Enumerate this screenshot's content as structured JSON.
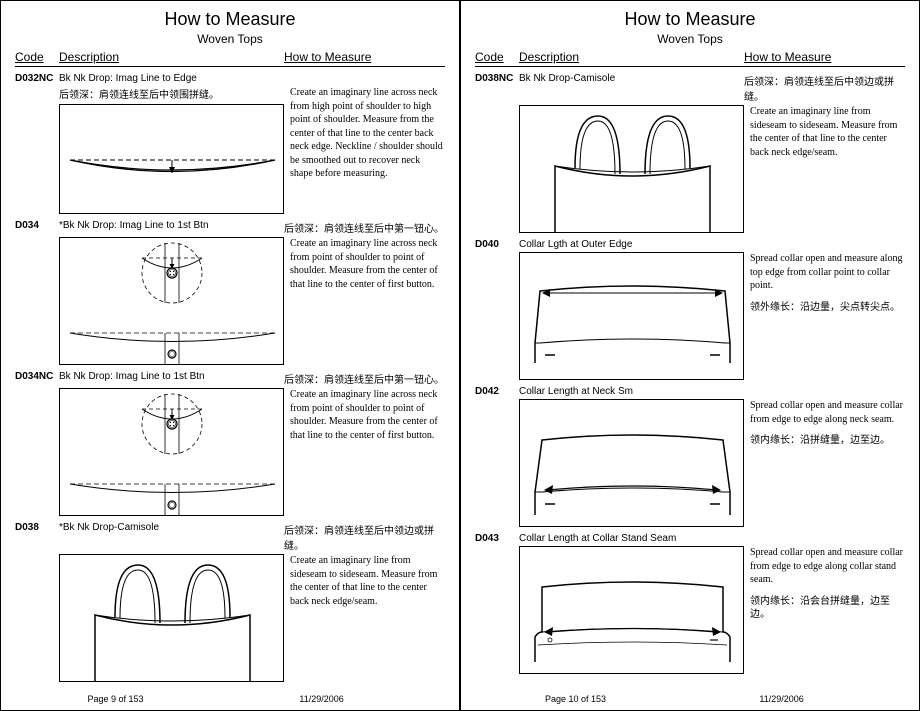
{
  "pageLeft": {
    "title": "How to Measure",
    "subtitle": "Woven Tops",
    "headers": {
      "code": "Code",
      "desc": "Description",
      "how": "How to Measure"
    },
    "footer": {
      "page": "Page 9 of 153",
      "date": "11/29/2006"
    },
    "entries": [
      {
        "code": "D032NC",
        "desc": "Bk Nk Drop: Imag Line to Edge",
        "chinese_inside": "后领深：肩领连线至后中领围拼缝。",
        "text": "Create an imaginary line across neck from high point of shoulder to high point of shoulder. Measure from the center of that line to the center back neck edge. Neckline / shoulder should be smoothed out to recover neck shape before measuring.",
        "diagram": "neckdrop"
      },
      {
        "code": "D034",
        "desc": "*Bk Nk Drop: Imag Line to 1st Btn",
        "chinese": "后领深：肩领连线至后中第一钮心。",
        "text": "Create an imaginary line across neck from point of shoulder to point of shoulder.  Measure from the center of that line to the center of first button.",
        "diagram": "button"
      },
      {
        "code": "D034NC",
        "desc": "Bk Nk Drop: Imag Line to 1st Btn",
        "chinese": "后领深：肩领连线至后中第一钮心。",
        "text": "Create an imaginary line across neck from point of shoulder to point of shoulder. Measure from the center of that line to the center of first button.",
        "diagram": "button"
      },
      {
        "code": "D038",
        "desc": "*Bk Nk Drop-Camisole",
        "chinese": "后领深：肩领连线至后中领边或拼缝。",
        "text": "Create an imaginary line from sideseam to sideseam.  Measure from the center of that line to the center back neck edge/seam.",
        "diagram": "camisole"
      }
    ]
  },
  "pageRight": {
    "title": "How to Measure",
    "subtitle": "Woven Tops",
    "headers": {
      "code": "Code",
      "desc": "Description",
      "how": "How to Measure"
    },
    "footer": {
      "page": "Page 10 of 153",
      "date": "11/29/2006"
    },
    "entries": [
      {
        "code": "D038NC",
        "desc": "Bk Nk Drop-Camisole",
        "chinese": "后领深：肩领连线至后中领边或拼缝。",
        "text": "Create an imaginary line from sideseam to sideseam. Measure from the center of that line to the center back neck edge/seam.",
        "diagram": "camisole"
      },
      {
        "code": "D040",
        "desc": "Collar Lgth at Outer Edge",
        "text": "Spread collar open and measure along top edge from collar point to collar point.",
        "chinese_after": "领外缘长：沿边量，尖点转尖点。",
        "diagram": "collar-outer"
      },
      {
        "code": "D042",
        "desc": "Collar Length at Neck Sm",
        "text": "Spread collar open and measure collar from edge to edge  along neck seam.",
        "chinese_after": "领内缘长：沿拼缝量，边至边。",
        "diagram": "collar-neck"
      },
      {
        "code": "D043",
        "desc": "Collar Length at Collar Stand Seam",
        "text": "Spread collar open and measure collar from edge to edge along collar stand seam.",
        "chinese_after": "领内缘长：沿会台拼缝量，边至边。",
        "diagram": "collar-stand"
      }
    ]
  }
}
